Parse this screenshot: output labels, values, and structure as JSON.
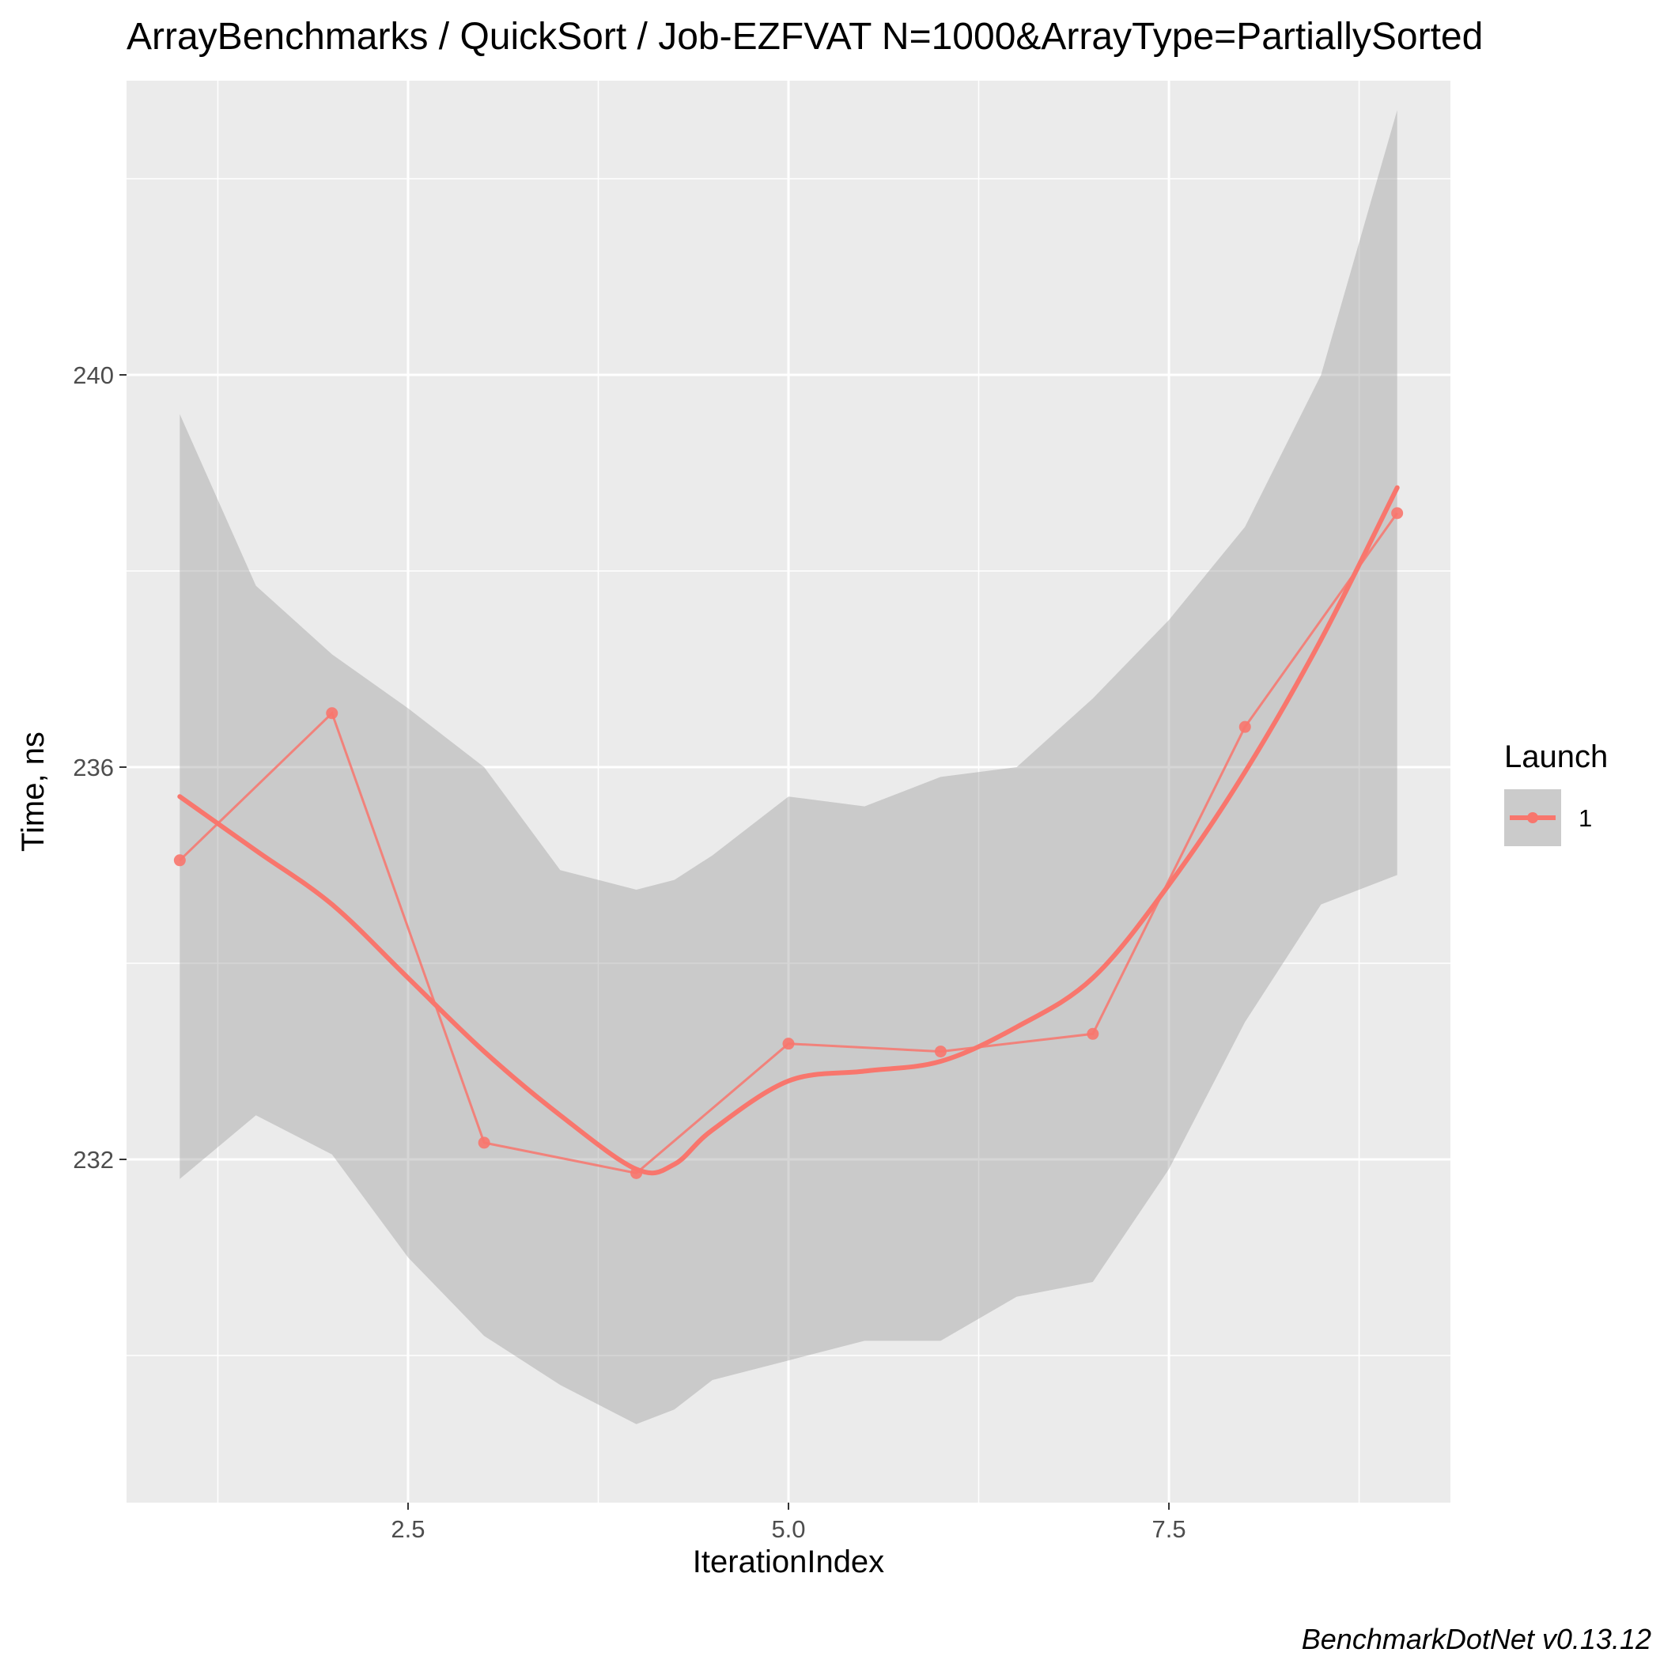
{
  "chart_data": {
    "type": "line",
    "title": "ArrayBenchmarks / QuickSort / Job-EZFVAT N=1000&ArrayType=PartiallySorted",
    "xlabel": "IterationIndex",
    "ylabel": "Time, ns",
    "caption": "BenchmarkDotNet v0.13.12",
    "xlim": [
      0.65,
      9.35
    ],
    "ylim": [
      228.5,
      243.0
    ],
    "x_ticks": [
      2.5,
      5.0,
      7.5
    ],
    "x_tick_labels": [
      "2.5",
      "5.0",
      "7.5"
    ],
    "y_ticks": [
      232,
      236,
      240
    ],
    "y_tick_labels": [
      "232",
      "236",
      "240"
    ],
    "grid": true,
    "legend": {
      "title": "Launch",
      "placement": "right",
      "entries": [
        "1"
      ]
    },
    "series": [
      {
        "name": "1",
        "color": "#F8766D",
        "x": [
          1,
          2,
          3,
          4,
          5,
          6,
          7,
          8,
          9
        ],
        "y": [
          235.05,
          236.55,
          232.17,
          231.86,
          233.18,
          233.1,
          233.28,
          236.41,
          238.59
        ]
      }
    ],
    "smooth": {
      "x": [
        1.0,
        1.5,
        2.0,
        2.5,
        3.0,
        3.5,
        4.0,
        4.25,
        4.5,
        5.0,
        5.5,
        6.0,
        6.5,
        7.0,
        7.5,
        8.0,
        8.5,
        9.0
      ],
      "y": [
        235.7,
        235.15,
        234.6,
        233.85,
        233.1,
        232.45,
        231.9,
        231.95,
        232.3,
        232.8,
        232.9,
        233.0,
        233.35,
        233.85,
        234.8,
        235.95,
        237.3,
        238.85
      ],
      "lower": [
        231.8,
        232.45,
        232.05,
        231.0,
        230.2,
        229.7,
        229.3,
        229.45,
        229.75,
        229.95,
        230.15,
        230.15,
        230.6,
        230.75,
        231.9,
        233.4,
        234.6,
        234.9
      ],
      "upper": [
        239.6,
        237.85,
        237.15,
        236.6,
        236.0,
        234.95,
        234.75,
        234.85,
        235.1,
        235.7,
        235.6,
        235.9,
        236.0,
        236.7,
        237.5,
        238.45,
        240.0,
        242.7
      ]
    }
  }
}
